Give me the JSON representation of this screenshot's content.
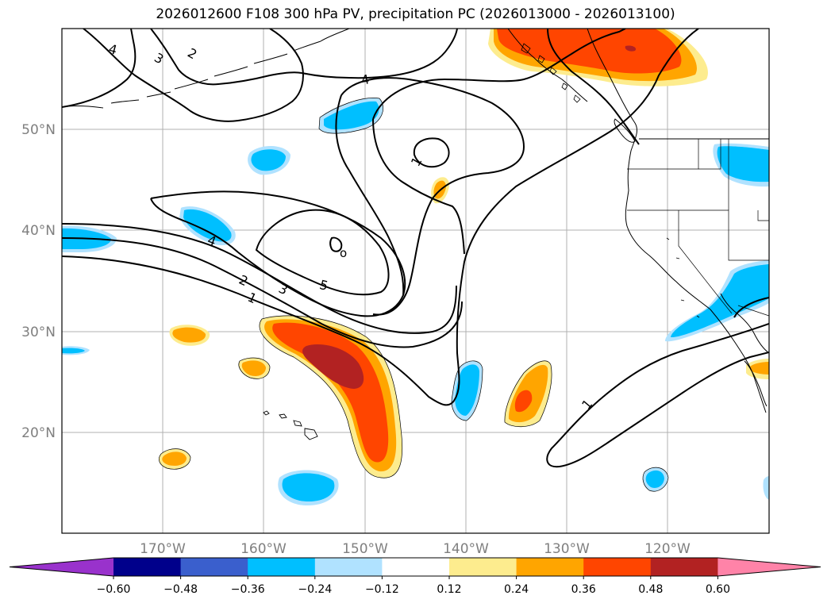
{
  "title": "2026012600 F108 300 hPa PV, precipitation PC (2026013000 - 2026013100)",
  "map": {
    "lat_labels": [
      "50°N",
      "40°N",
      "30°N",
      "20°N"
    ],
    "lon_labels": [
      "170°W",
      "160°W",
      "150°W",
      "140°W",
      "130°W",
      "120°W"
    ],
    "contour_labels": [
      "4",
      "3",
      "2",
      "4",
      "1",
      "4",
      "2",
      "3",
      "5",
      "1",
      "1",
      "o"
    ]
  },
  "colorbar": {
    "colors": [
      "#9932cc",
      "#00008b",
      "#3a5fcd",
      "#00bfff",
      "#b0e2ff",
      "#ffffff",
      "#fdec8e",
      "#ffa500",
      "#ff4500",
      "#b22222",
      "#ff83a8"
    ],
    "ticks": [
      "−0.60",
      "−0.48",
      "−0.36",
      "−0.24",
      "−0.12",
      "0.12",
      "0.24",
      "0.36",
      "0.48",
      "0.60"
    ]
  }
}
